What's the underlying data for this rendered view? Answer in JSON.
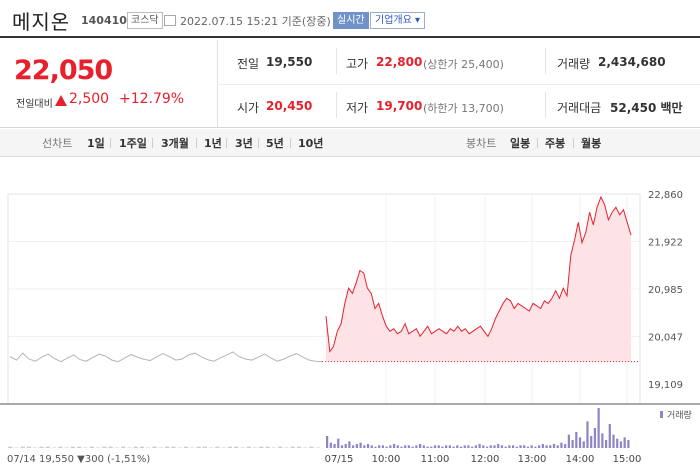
{
  "header": {
    "stock_name": "메지온",
    "stock_code": "140410",
    "market": "코스닥",
    "datetime": "2022.07.15 15:21 기준(장중)",
    "realtime_label": "실시간",
    "company_label": "기업개요 ▾"
  },
  "price": {
    "current": "22,050",
    "change_label": "전일대비",
    "change_value": "2,500",
    "change_rate": "+12.79%",
    "prev_label": "전일",
    "prev_value": "19,550",
    "high_label": "고가",
    "high_value": "22,800",
    "upper_limit": "(상한가 25,400)",
    "volume_label": "거래량",
    "volume_value": "2,434,680",
    "open_label": "시가",
    "open_value": "20,450",
    "low_label": "저가",
    "low_value": "19,700",
    "lower_limit": "(하한가 13,700)",
    "amount_label": "거래대금",
    "amount_value": "52,450 백만"
  },
  "toolbar": {
    "line_label": "선차트",
    "line_periods": [
      "1일",
      "1주일",
      "3개월",
      "1년",
      "3년",
      "5년",
      "10년"
    ],
    "candle_label": "봉차트",
    "candle_periods": [
      "일봉",
      "주봉",
      "월봉"
    ]
  },
  "colors": {
    "up": "#e8202c",
    "down": "#2f58c5",
    "prev_day": "#b5b5b5"
  },
  "chart_data": {
    "type": "line",
    "y_ticks": [
      "22,860",
      "21,922",
      "20,985",
      "20,047",
      "19,109"
    ],
    "ylim": [
      19109,
      22860
    ],
    "volume_legend": "거래량",
    "x_tick_labels": [
      "07/15",
      "10:00",
      "11:00",
      "12:00",
      "13:00",
      "14:00",
      "15:00"
    ],
    "bottom_left_info": "07/14 19,550 ▼300 (-1,51%)",
    "prev_close": 19550,
    "prev_day_series": [
      19650,
      19580,
      19720,
      19600,
      19560,
      19640,
      19700,
      19610,
      19550,
      19620,
      19680,
      19590,
      19560,
      19630,
      19700,
      19660,
      19580,
      19550,
      19620,
      19690,
      19640,
      19600,
      19570,
      19640,
      19710,
      19650,
      19580,
      19600,
      19680,
      19720,
      19650,
      19590,
      19560,
      19620,
      19680,
      19740,
      19650,
      19600,
      19580,
      19640,
      19700,
      19620,
      19560,
      19600,
      19660,
      19710,
      19640,
      19580,
      19560,
      19550
    ],
    "today_series": [
      20450,
      19750,
      19850,
      20150,
      20300,
      20700,
      21000,
      20900,
      21100,
      21350,
      21300,
      21000,
      20900,
      20600,
      20700,
      20450,
      20250,
      20150,
      20200,
      20100,
      20150,
      20300,
      20100,
      20150,
      20200,
      20050,
      20150,
      20250,
      20100,
      20150,
      20200,
      20150,
      20100,
      20200,
      20150,
      20250,
      20150,
      20200,
      20100,
      20150,
      20200,
      20250,
      20150,
      20050,
      20200,
      20400,
      20550,
      20700,
      20800,
      20750,
      20600,
      20700,
      20650,
      20600,
      20550,
      20700,
      20650,
      20600,
      20750,
      20700,
      20800,
      20950,
      20800,
      21000,
      20850,
      21650,
      21950,
      22300,
      21900,
      22100,
      22500,
      22250,
      22600,
      22800,
      22650,
      22350,
      22500,
      22600,
      22450,
      22550,
      22300,
      22050
    ],
    "today_volume": [
      9,
      4,
      3,
      7,
      2,
      3,
      5,
      2,
      3,
      4,
      2,
      3,
      2,
      1,
      2,
      2,
      1,
      2,
      3,
      2,
      1,
      2,
      2,
      1,
      2,
      3,
      2,
      1,
      1,
      2,
      2,
      1,
      2,
      2,
      1,
      2,
      1,
      2,
      2,
      1,
      2,
      3,
      2,
      1,
      2,
      2,
      3,
      2,
      1,
      2,
      2,
      1,
      2,
      2,
      1,
      2,
      1,
      2,
      3,
      2,
      2,
      3,
      2,
      4,
      3,
      10,
      6,
      12,
      8,
      5,
      20,
      9,
      15,
      30,
      11,
      6,
      18,
      10,
      7,
      5,
      8,
      6
    ],
    "prev_volume": [
      1,
      0,
      1,
      1,
      0,
      1,
      1,
      0,
      1,
      0,
      1,
      1,
      0,
      1,
      0,
      1,
      1,
      0,
      1,
      0,
      1,
      1,
      0,
      1,
      0,
      1,
      1,
      0,
      1,
      0,
      1,
      1,
      0,
      1,
      0,
      1,
      1,
      0,
      1,
      0,
      1,
      1,
      0,
      1,
      0,
      1,
      1,
      0,
      1,
      0
    ]
  }
}
